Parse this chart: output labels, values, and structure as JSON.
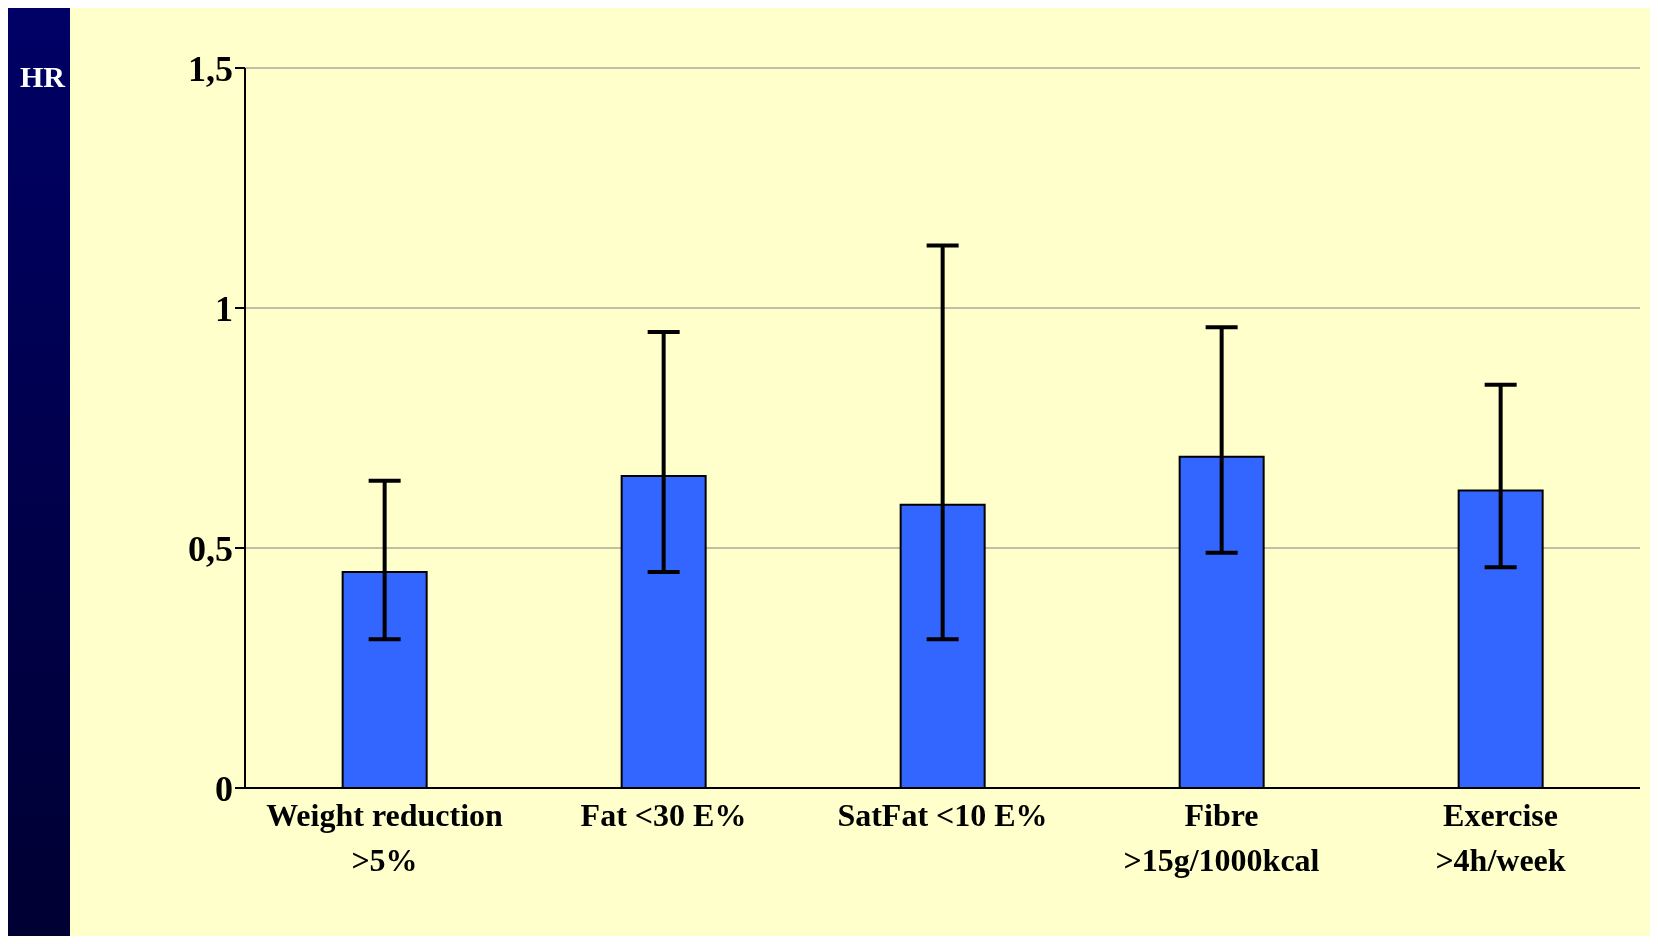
{
  "chart_data": {
    "type": "bar",
    "ylabel": "HR",
    "categories": [
      "Weight reduction >5%",
      "Fat <30 E%",
      "SatFat <10 E%",
      "Fibre >15g/1000kcal",
      "Exercise >4h/week"
    ],
    "values": [
      0.45,
      0.65,
      0.59,
      0.69,
      0.62
    ],
    "errors": [
      [
        0.31,
        0.64
      ],
      [
        0.45,
        0.95
      ],
      [
        0.31,
        1.13
      ],
      [
        0.49,
        0.96
      ],
      [
        0.46,
        0.84
      ]
    ],
    "color": "#3366ff",
    "ylim": [
      0,
      1.5
    ],
    "yticks": [
      0,
      {
        "value": 0.5,
        "label": "0,5"
      },
      1,
      {
        "value": 1.5,
        "label": "1,5"
      }
    ],
    "grid": "y"
  }
}
